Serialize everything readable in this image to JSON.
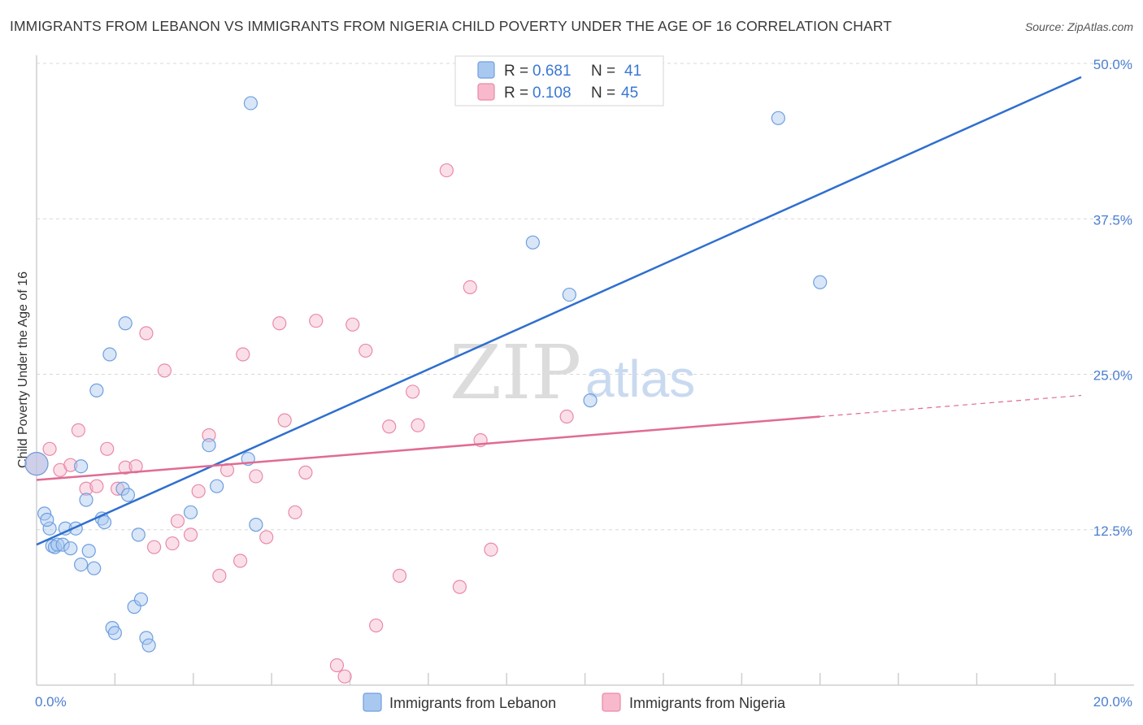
{
  "title": "IMMIGRANTS FROM LEBANON VS IMMIGRANTS FROM NIGERIA CHILD POVERTY UNDER THE AGE OF 16 CORRELATION CHART",
  "source": "Source: ZipAtlas.com",
  "watermark": {
    "zip": "ZIP",
    "atlas": "atlas"
  },
  "legend_top": {
    "rows": [
      {
        "r_label": "R = ",
        "r_value": "0.681",
        "n_label": "N = ",
        "n_value": "41"
      },
      {
        "r_label": "R = ",
        "r_value": "0.108",
        "n_label": "N = ",
        "n_value": "45"
      }
    ]
  },
  "colors": {
    "lebanon_fill": "#a9c8f0",
    "lebanon_stroke": "#6e9fe0",
    "lebanon_line": "#2f6fcf",
    "nigeria_fill": "#f7b9cb",
    "nigeria_stroke": "#e98aa7",
    "nigeria_line": "#e06b93",
    "grid": "#d8d8d8",
    "tick_label": "#4a7fd0"
  },
  "chart_data": {
    "type": "scatter",
    "title": "IMMIGRANTS FROM LEBANON VS IMMIGRANTS FROM NIGERIA CHILD POVERTY UNDER THE AGE OF 16 CORRELATION CHART",
    "xlabel": "",
    "ylabel": "Child Poverty Under the Age of 16",
    "xlim": [
      0,
      20
    ],
    "ylim": [
      0,
      50
    ],
    "x_tick_labels": [
      "0.0%",
      "20.0%"
    ],
    "y_ticks": [
      12.5,
      25.0,
      37.5,
      50.0
    ],
    "y_tick_labels": [
      "12.5%",
      "25.0%",
      "37.5%",
      "50.0%"
    ],
    "grid": true,
    "legend_position": "top-center",
    "series": [
      {
        "name": "Immigrants from Lebanon",
        "R": 0.681,
        "N": 41,
        "trend": {
          "x": [
            0,
            20
          ],
          "y": [
            11.3,
            48.9
          ]
        },
        "points": [
          {
            "x": 0.0,
            "y": 17.8
          },
          {
            "x": 0.15,
            "y": 13.8
          },
          {
            "x": 0.25,
            "y": 12.6
          },
          {
            "x": 0.3,
            "y": 11.2
          },
          {
            "x": 0.35,
            "y": 11.1
          },
          {
            "x": 0.4,
            "y": 11.3
          },
          {
            "x": 0.5,
            "y": 11.3
          },
          {
            "x": 0.55,
            "y": 12.6
          },
          {
            "x": 0.65,
            "y": 11.0
          },
          {
            "x": 0.75,
            "y": 12.6
          },
          {
            "x": 0.85,
            "y": 9.7
          },
          {
            "x": 0.95,
            "y": 14.9
          },
          {
            "x": 1.0,
            "y": 10.8
          },
          {
            "x": 1.1,
            "y": 9.4
          },
          {
            "x": 1.15,
            "y": 23.7
          },
          {
            "x": 1.25,
            "y": 13.4
          },
          {
            "x": 1.3,
            "y": 13.1
          },
          {
            "x": 1.4,
            "y": 26.6
          },
          {
            "x": 1.45,
            "y": 4.6
          },
          {
            "x": 1.5,
            "y": 4.2
          },
          {
            "x": 1.65,
            "y": 15.8
          },
          {
            "x": 1.7,
            "y": 29.1
          },
          {
            "x": 1.75,
            "y": 15.3
          },
          {
            "x": 1.87,
            "y": 6.3
          },
          {
            "x": 1.95,
            "y": 12.1
          },
          {
            "x": 2.0,
            "y": 6.9
          },
          {
            "x": 2.1,
            "y": 3.8
          },
          {
            "x": 2.15,
            "y": 3.2
          },
          {
            "x": 2.95,
            "y": 13.9
          },
          {
            "x": 3.3,
            "y": 19.3
          },
          {
            "x": 3.45,
            "y": 16.0
          },
          {
            "x": 4.1,
            "y": 46.8
          },
          {
            "x": 4.05,
            "y": 18.2
          },
          {
            "x": 4.2,
            "y": 12.9
          },
          {
            "x": 0.85,
            "y": 17.6
          },
          {
            "x": 9.5,
            "y": 35.6
          },
          {
            "x": 10.2,
            "y": 31.4
          },
          {
            "x": 10.6,
            "y": 22.9
          },
          {
            "x": 14.2,
            "y": 45.6
          },
          {
            "x": 15.0,
            "y": 32.4
          },
          {
            "x": 0.2,
            "y": 13.3
          }
        ]
      },
      {
        "name": "Immigrants from Nigeria",
        "R": 0.108,
        "N": 45,
        "trend": {
          "x": [
            0,
            15.0
          ],
          "y": [
            16.5,
            21.6
          ]
        },
        "trend_dashed": {
          "x": [
            15.0,
            20
          ],
          "y": [
            21.6,
            23.3
          ]
        },
        "points": [
          {
            "x": 0.0,
            "y": 17.8
          },
          {
            "x": 0.25,
            "y": 19.0
          },
          {
            "x": 0.45,
            "y": 17.3
          },
          {
            "x": 0.65,
            "y": 17.7
          },
          {
            "x": 0.8,
            "y": 20.5
          },
          {
            "x": 0.95,
            "y": 15.8
          },
          {
            "x": 1.15,
            "y": 16.0
          },
          {
            "x": 1.35,
            "y": 19.0
          },
          {
            "x": 1.55,
            "y": 15.8
          },
          {
            "x": 1.7,
            "y": 17.5
          },
          {
            "x": 1.9,
            "y": 17.6
          },
          {
            "x": 2.1,
            "y": 28.3
          },
          {
            "x": 2.25,
            "y": 11.1
          },
          {
            "x": 2.45,
            "y": 25.3
          },
          {
            "x": 2.6,
            "y": 11.4
          },
          {
            "x": 2.7,
            "y": 13.2
          },
          {
            "x": 2.95,
            "y": 12.1
          },
          {
            "x": 3.1,
            "y": 15.6
          },
          {
            "x": 3.3,
            "y": 20.1
          },
          {
            "x": 3.5,
            "y": 8.8
          },
          {
            "x": 3.65,
            "y": 17.3
          },
          {
            "x": 3.9,
            "y": 10.0
          },
          {
            "x": 3.95,
            "y": 26.6
          },
          {
            "x": 4.2,
            "y": 16.8
          },
          {
            "x": 4.4,
            "y": 11.9
          },
          {
            "x": 4.65,
            "y": 29.1
          },
          {
            "x": 4.75,
            "y": 21.3
          },
          {
            "x": 4.95,
            "y": 13.9
          },
          {
            "x": 5.15,
            "y": 17.1
          },
          {
            "x": 5.35,
            "y": 29.3
          },
          {
            "x": 5.75,
            "y": 1.6
          },
          {
            "x": 5.9,
            "y": 0.7
          },
          {
            "x": 6.05,
            "y": 29.0
          },
          {
            "x": 6.3,
            "y": 26.9
          },
          {
            "x": 6.5,
            "y": 4.8
          },
          {
            "x": 6.75,
            "y": 20.8
          },
          {
            "x": 6.95,
            "y": 8.8
          },
          {
            "x": 7.2,
            "y": 23.6
          },
          {
            "x": 7.3,
            "y": 20.9
          },
          {
            "x": 7.85,
            "y": 41.4
          },
          {
            "x": 8.1,
            "y": 7.9
          },
          {
            "x": 8.3,
            "y": 32.0
          },
          {
            "x": 8.5,
            "y": 19.7
          },
          {
            "x": 8.7,
            "y": 10.9
          },
          {
            "x": 10.15,
            "y": 21.6
          }
        ]
      }
    ]
  }
}
